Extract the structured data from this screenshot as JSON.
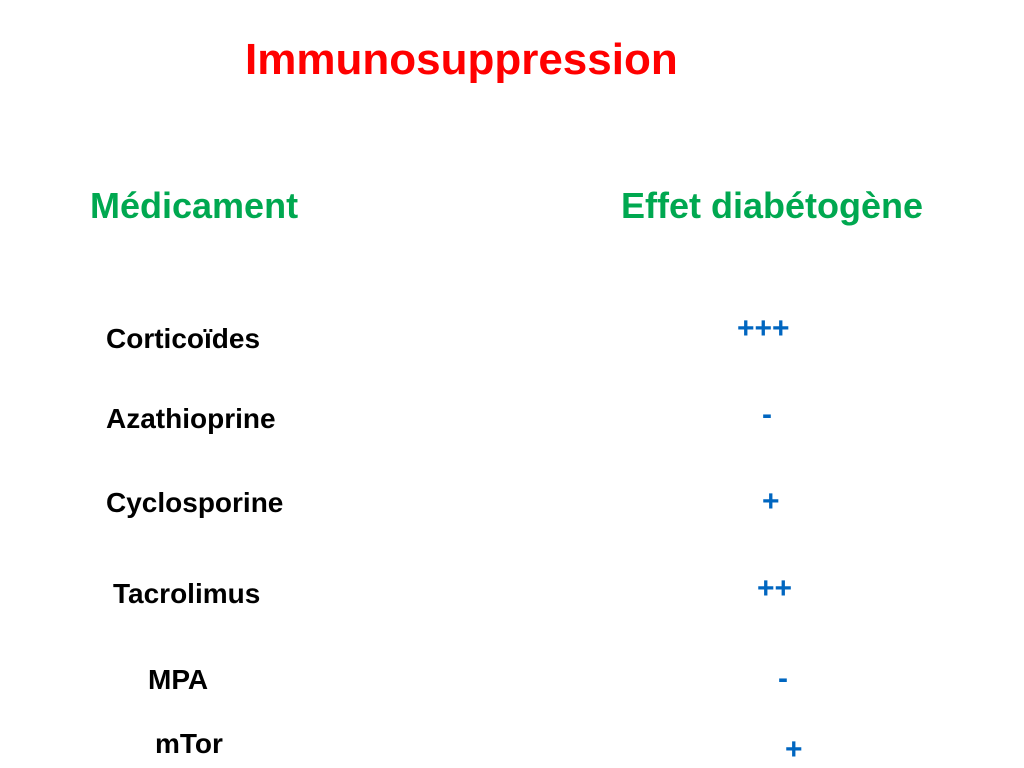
{
  "title": "Immunosuppression",
  "headers": {
    "drug": "Médicament",
    "effect": "Effet diabétogène"
  },
  "rows": [
    {
      "drug": "Corticoïdes",
      "effect": "+++"
    },
    {
      "drug": "Azathioprine",
      "effect": "-"
    },
    {
      "drug": "Cyclosporine",
      "effect": "+"
    },
    {
      "drug": "Tacrolimus",
      "effect": "++"
    },
    {
      "drug": "MPA",
      "effect": "-"
    },
    {
      "drug": "mTor",
      "effect": "+"
    }
  ],
  "colors": {
    "title": "#ff0000",
    "headers": "#00a850",
    "effects": "#0066c0"
  }
}
